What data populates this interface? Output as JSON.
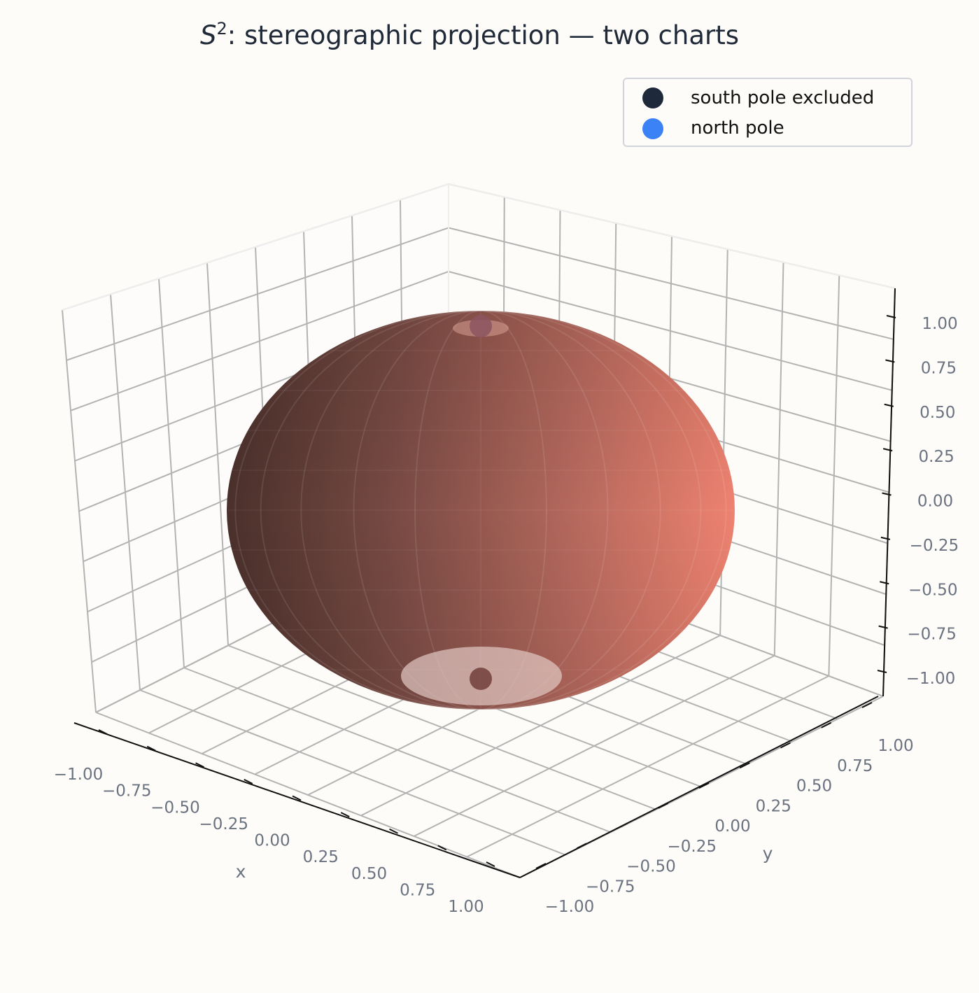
{
  "chart_data": {
    "type": "scatter",
    "title": {
      "symbol": "S",
      "superscript": "2",
      "rest": ": stereographic projection — two charts"
    },
    "xlabel": "x",
    "ylabel": "y",
    "zlabel": "",
    "xlim": [
      -1.0,
      1.0
    ],
    "ylim": [
      -1.0,
      1.0
    ],
    "zlim": [
      -1.0,
      1.0
    ],
    "xticks": [
      "−1.00",
      "−0.75",
      "−0.50",
      "−0.25",
      "0.00",
      "0.25",
      "0.50",
      "0.75",
      "1.00"
    ],
    "yticks": [
      "−1.00",
      "−0.75",
      "−0.50",
      "−0.25",
      "0.00",
      "0.25",
      "0.50",
      "0.75",
      "1.00"
    ],
    "zticks": [
      "−1.00",
      "−0.75",
      "−0.50",
      "−0.25",
      "0.00",
      "0.25",
      "0.50",
      "0.75",
      "1.00"
    ],
    "grid": true,
    "legend_position": "top-right",
    "surface": {
      "shape": "unit sphere",
      "color_dark": "#3b2a26",
      "color_light": "#f08070"
    },
    "series": [
      {
        "name": "south pole excluded",
        "color": "#1e293b",
        "points": [
          {
            "x": 0,
            "y": 0,
            "z": -1
          }
        ]
      },
      {
        "name": "north pole",
        "color": "#3b82f6",
        "points": [
          {
            "x": 0,
            "y": 0,
            "z": 1
          }
        ]
      }
    ]
  }
}
